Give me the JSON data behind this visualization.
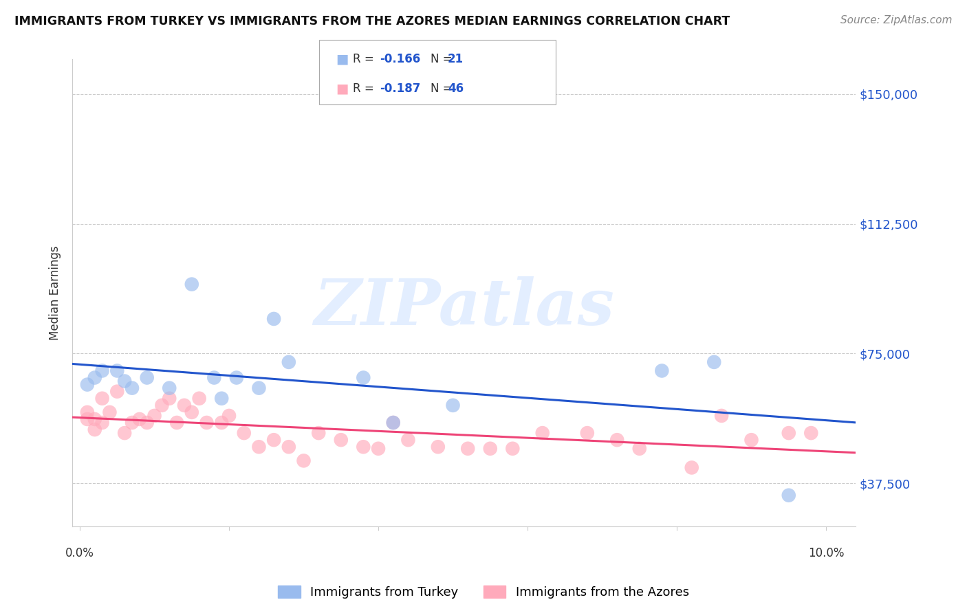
{
  "title": "IMMIGRANTS FROM TURKEY VS IMMIGRANTS FROM THE AZORES MEDIAN EARNINGS CORRELATION CHART",
  "source": "Source: ZipAtlas.com",
  "ylabel": "Median Earnings",
  "yticks": [
    37500,
    75000,
    112500,
    150000
  ],
  "ytick_labels": [
    "$37,500",
    "$75,000",
    "$112,500",
    "$150,000"
  ],
  "legend1_label": "Immigrants from Turkey",
  "legend2_label": "Immigrants from the Azores",
  "r1_text": "-0.166",
  "n1_text": "21",
  "r2_text": "-0.187",
  "n2_text": "46",
  "color_blue": "#99BBEE",
  "color_pink": "#FFAABB",
  "line_blue": "#2255CC",
  "line_pink": "#EE4477",
  "turkey_x": [
    0.001,
    0.002,
    0.003,
    0.005,
    0.006,
    0.007,
    0.009,
    0.012,
    0.015,
    0.018,
    0.019,
    0.021,
    0.024,
    0.026,
    0.028,
    0.038,
    0.042,
    0.05,
    0.078,
    0.085,
    0.095
  ],
  "turkey_y": [
    66000,
    68000,
    70000,
    70000,
    67000,
    65000,
    68000,
    65000,
    95000,
    68000,
    62000,
    68000,
    65000,
    85000,
    72500,
    68000,
    55000,
    60000,
    70000,
    72500,
    34000
  ],
  "azores_x": [
    0.001,
    0.001,
    0.002,
    0.002,
    0.003,
    0.003,
    0.004,
    0.005,
    0.006,
    0.007,
    0.008,
    0.009,
    0.01,
    0.011,
    0.012,
    0.013,
    0.014,
    0.015,
    0.016,
    0.017,
    0.019,
    0.02,
    0.022,
    0.024,
    0.026,
    0.028,
    0.03,
    0.032,
    0.035,
    0.038,
    0.04,
    0.042,
    0.044,
    0.048,
    0.052,
    0.055,
    0.058,
    0.062,
    0.068,
    0.072,
    0.075,
    0.082,
    0.086,
    0.09,
    0.095,
    0.098
  ],
  "azores_y": [
    56000,
    58000,
    56000,
    53000,
    62000,
    55000,
    58000,
    64000,
    52000,
    55000,
    56000,
    55000,
    57000,
    60000,
    62000,
    55000,
    60000,
    58000,
    62000,
    55000,
    55000,
    57000,
    52000,
    48000,
    50000,
    48000,
    44000,
    52000,
    50000,
    48000,
    47500,
    55000,
    50000,
    48000,
    47500,
    47500,
    47500,
    52000,
    52000,
    50000,
    47500,
    42000,
    57000,
    50000,
    52000,
    52000
  ],
  "xmin": 0.0,
  "xmax": 0.1,
  "xlim_left": -0.001,
  "xlim_right": 0.104,
  "ymin": 25000,
  "ymax": 160000,
  "watermark": "ZIPatlas",
  "background": "#ffffff",
  "grid_color": "#cccccc",
  "title_fontsize": 12.5,
  "source_fontsize": 11,
  "tick_label_color": "#2255CC"
}
